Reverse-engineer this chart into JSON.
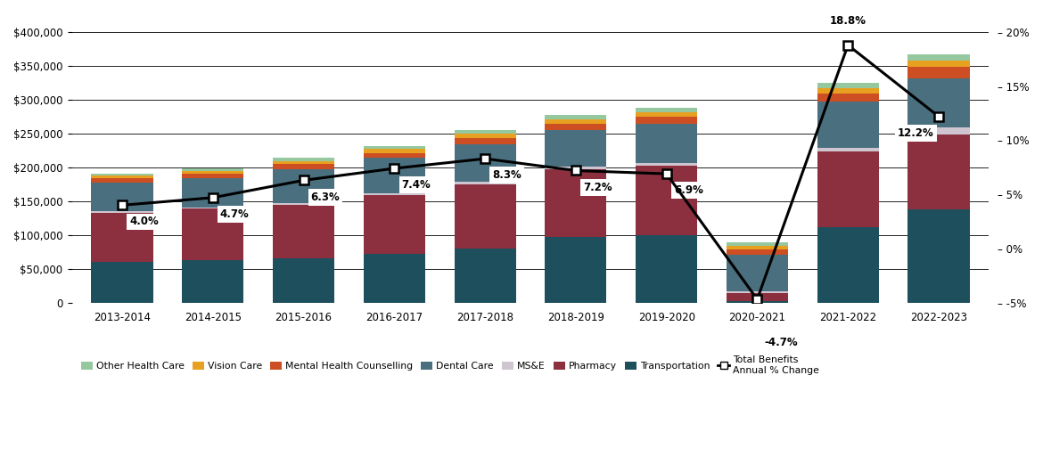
{
  "years": [
    "2013-2014",
    "2014-2015",
    "2015-2016",
    "2016-2017",
    "2017-2018",
    "2018-2019",
    "2019-2020",
    "2020-2021",
    "2021-2022",
    "2022-2023"
  ],
  "segments": {
    "Transportation": [
      60000,
      63000,
      65000,
      72000,
      80000,
      97000,
      100000,
      2000,
      112000,
      138000
    ],
    "Pharmacy": [
      73000,
      76000,
      80000,
      87000,
      95000,
      100000,
      103000,
      12000,
      112000,
      110000
    ],
    "MS&E": [
      2000,
      2000,
      2500,
      3000,
      3500,
      3500,
      4000,
      3000,
      5000,
      11000
    ],
    "Dental Care": [
      43000,
      43000,
      50000,
      52000,
      56000,
      55000,
      57000,
      54000,
      68000,
      72000
    ],
    "Mental Health Counselling": [
      5500,
      6000,
      7000,
      7500,
      9000,
      9500,
      11000,
      8000,
      12000,
      18000
    ],
    "Vision Care": [
      4000,
      4500,
      5000,
      5500,
      6000,
      6500,
      7000,
      5000,
      8000,
      9000
    ],
    "Other Health Care": [
      3500,
      4000,
      4500,
      5000,
      5500,
      6000,
      6500,
      5000,
      8000,
      9000
    ]
  },
  "pct_change": [
    4.0,
    4.7,
    6.3,
    7.4,
    8.3,
    7.2,
    6.9,
    -4.7,
    18.8,
    12.2
  ],
  "colors": {
    "Transportation": "#1d4f5c",
    "Pharmacy": "#8c3040",
    "MS&E": "#cfc5d0",
    "Dental Care": "#4a7080",
    "Mental Health Counselling": "#cc4e22",
    "Vision Care": "#e8a020",
    "Other Health Care": "#96c8a0"
  },
  "legend_order": [
    "Other Health Care",
    "Vision Care",
    "Mental Health Counselling",
    "Dental Care",
    "MS&E",
    "Pharmacy",
    "Transportation"
  ],
  "ylim_left": [
    0,
    400000
  ],
  "ylim_right": [
    -5,
    20
  ],
  "yticks_left": [
    0,
    50000,
    100000,
    150000,
    200000,
    250000,
    300000,
    350000,
    400000
  ],
  "yticks_right": [
    -5,
    0,
    5,
    10,
    15,
    20
  ],
  "bg_color": "#ffffff",
  "bar_width": 0.68,
  "figsize": [
    11.7,
    5.22
  ],
  "dpi": 100
}
